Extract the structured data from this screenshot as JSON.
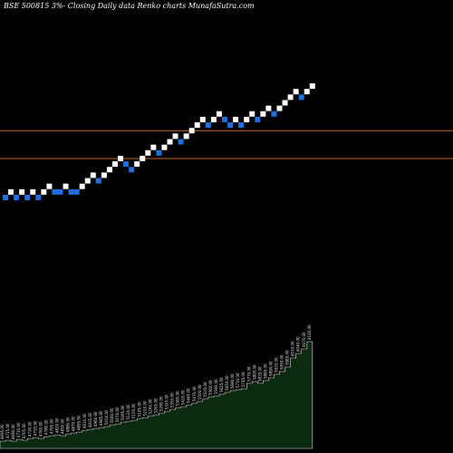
{
  "title": "BSE 500815 3%- Closing Daily data Renko charts MunafaSutra.com",
  "colors": {
    "background": "#000000",
    "up_brick": "#ffffff",
    "down_brick": "#1e6fe0",
    "hline": "#c06a2a",
    "volume_fill": "#0b2a10",
    "volume_line": "#e6e6e6",
    "label": "#e6e6e6"
  },
  "chart_data": {
    "type": "renko",
    "bricks": [
      {
        "level": 0,
        "dir": "down"
      },
      {
        "level": 1,
        "dir": "up"
      },
      {
        "level": 0,
        "dir": "down"
      },
      {
        "level": 1,
        "dir": "up"
      },
      {
        "level": 0,
        "dir": "down"
      },
      {
        "level": 1,
        "dir": "up"
      },
      {
        "level": 0,
        "dir": "down"
      },
      {
        "level": 1,
        "dir": "up"
      },
      {
        "level": 2,
        "dir": "up"
      },
      {
        "level": 1,
        "dir": "down"
      },
      {
        "level": 1,
        "dir": "down"
      },
      {
        "level": 2,
        "dir": "up"
      },
      {
        "level": 1,
        "dir": "down"
      },
      {
        "level": 1,
        "dir": "down"
      },
      {
        "level": 2,
        "dir": "up"
      },
      {
        "level": 3,
        "dir": "up"
      },
      {
        "level": 4,
        "dir": "up"
      },
      {
        "level": 3,
        "dir": "down"
      },
      {
        "level": 4,
        "dir": "up"
      },
      {
        "level": 5,
        "dir": "up"
      },
      {
        "level": 6,
        "dir": "up"
      },
      {
        "level": 7,
        "dir": "up"
      },
      {
        "level": 6,
        "dir": "down"
      },
      {
        "level": 5,
        "dir": "down"
      },
      {
        "level": 6,
        "dir": "up"
      },
      {
        "level": 7,
        "dir": "up"
      },
      {
        "level": 8,
        "dir": "up"
      },
      {
        "level": 9,
        "dir": "up"
      },
      {
        "level": 8,
        "dir": "down"
      },
      {
        "level": 9,
        "dir": "up"
      },
      {
        "level": 10,
        "dir": "up"
      },
      {
        "level": 11,
        "dir": "up"
      },
      {
        "level": 10,
        "dir": "down"
      },
      {
        "level": 11,
        "dir": "up"
      },
      {
        "level": 12,
        "dir": "up"
      },
      {
        "level": 13,
        "dir": "up"
      },
      {
        "level": 14,
        "dir": "up"
      },
      {
        "level": 13,
        "dir": "down"
      },
      {
        "level": 14,
        "dir": "up"
      },
      {
        "level": 15,
        "dir": "up"
      },
      {
        "level": 14,
        "dir": "down"
      },
      {
        "level": 13,
        "dir": "down"
      },
      {
        "level": 14,
        "dir": "up"
      },
      {
        "level": 13,
        "dir": "down"
      },
      {
        "level": 14,
        "dir": "up"
      },
      {
        "level": 15,
        "dir": "up"
      },
      {
        "level": 14,
        "dir": "down"
      },
      {
        "level": 15,
        "dir": "up"
      },
      {
        "level": 16,
        "dir": "up"
      },
      {
        "level": 15,
        "dir": "down"
      },
      {
        "level": 16,
        "dir": "up"
      },
      {
        "level": 17,
        "dir": "up"
      },
      {
        "level": 18,
        "dir": "up"
      },
      {
        "level": 19,
        "dir": "up"
      },
      {
        "level": 18,
        "dir": "down"
      },
      {
        "level": 19,
        "dir": "up"
      },
      {
        "level": 20,
        "dir": "up"
      }
    ],
    "hlines": [
      12,
      7
    ],
    "volume_labels": [
      "4695.00",
      "4715.00",
      "4690.00",
      "4710.00",
      "4705.00",
      "4730.00",
      "4755.00",
      "4760.00",
      "4780.00",
      "4795.00",
      "4820.00",
      "4850.00",
      "4880.00",
      "4870.00",
      "4895.00",
      "4910.00",
      "4935.00",
      "4960.00",
      "4985.00",
      "5010.00",
      "5040.00",
      "5070.00",
      "5095.00",
      "5120.00",
      "5155.00",
      "5185.00",
      "5210.00",
      "5240.00",
      "5265.00",
      "5290.00",
      "5320.00",
      "5350.00",
      "5385.00",
      "5410.00",
      "5440.00",
      "5470.00",
      "5500.00",
      "5535.00",
      "5560.00",
      "5590.00",
      "5625.00",
      "5650.00",
      "5680.00",
      "5710.00",
      "5745.00",
      "5770.00",
      "5800.00",
      "5835.00",
      "5860.00",
      "5890.00",
      "5920.00",
      "5950.00",
      "5985.00",
      "6010.00",
      "6040.00",
      "6070.00",
      "6100.00"
    ],
    "volume_heights": [
      8,
      9,
      8,
      10,
      9,
      11,
      12,
      11,
      13,
      14,
      15,
      14,
      16,
      17,
      18,
      20,
      21,
      22,
      23,
      24,
      26,
      27,
      29,
      30,
      31,
      33,
      34,
      36,
      37,
      39,
      41,
      43,
      45,
      46,
      48,
      50,
      52,
      55,
      57,
      58,
      60,
      62,
      64,
      65,
      66,
      72,
      74,
      72,
      75,
      78,
      82,
      85,
      90,
      100,
      105,
      110,
      118
    ]
  }
}
